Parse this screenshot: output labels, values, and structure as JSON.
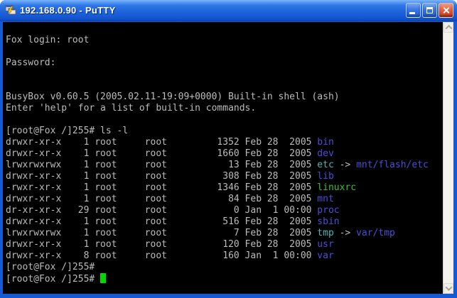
{
  "window": {
    "title": "192.168.0.90 - PuTTY",
    "icon": "putty-icon",
    "controls": {
      "minimize": "minimize-button",
      "maximize": "maximize-button",
      "close": "close-button"
    }
  },
  "palette": {
    "title_bar_blue": "#1f63dc",
    "border_blue": "#155ad4",
    "terminal_bg": "#000000",
    "terminal_fg": "#bcbcbc",
    "dir_blue": "#4d4dd8",
    "symlink_cyan": "#4fb6b6",
    "exec_green": "#3cbe3c",
    "cursor_green": "#00d800",
    "close_red": "#d44a26"
  },
  "scrollbar": {
    "up_icon": "chevron-up-icon",
    "down_icon": "chevron-down-icon"
  },
  "terminal": {
    "lines": [
      {
        "segments": [
          {
            "t": "",
            "c": "fg"
          }
        ]
      },
      {
        "segments": [
          {
            "t": "Fox login: root",
            "c": "fg"
          }
        ]
      },
      {
        "segments": [
          {
            "t": "",
            "c": "fg"
          }
        ]
      },
      {
        "segments": [
          {
            "t": "Password:",
            "c": "fg"
          }
        ]
      },
      {
        "segments": [
          {
            "t": "",
            "c": "fg"
          }
        ]
      },
      {
        "segments": [
          {
            "t": "",
            "c": "fg"
          }
        ]
      },
      {
        "segments": [
          {
            "t": "BusyBox v0.60.5 (2005.02.11-19:09+0000) Built-in shell (ash)",
            "c": "fg"
          }
        ]
      },
      {
        "segments": [
          {
            "t": "Enter 'help' for a list of built-in commands.",
            "c": "fg"
          }
        ]
      },
      {
        "segments": [
          {
            "t": "",
            "c": "fg"
          }
        ]
      },
      {
        "segments": [
          {
            "t": "[root@Fox /]255# ls -l",
            "c": "fg"
          }
        ]
      },
      {
        "segments": [
          {
            "t": "drwxr-xr-x    1 root     root         1352 Feb 28  2005 ",
            "c": "fg"
          },
          {
            "t": "bin",
            "c": "blue"
          }
        ]
      },
      {
        "segments": [
          {
            "t": "drwxr-xr-x    1 root     root         1660 Feb 28  2005 ",
            "c": "fg"
          },
          {
            "t": "dev",
            "c": "blue"
          }
        ]
      },
      {
        "segments": [
          {
            "t": "lrwxrwxrwx    1 root     root           13 Feb 28  2005 ",
            "c": "fg"
          },
          {
            "t": "etc",
            "c": "cyan"
          },
          {
            "t": " -> ",
            "c": "fg"
          },
          {
            "t": "mnt/flash/etc",
            "c": "blue"
          }
        ]
      },
      {
        "segments": [
          {
            "t": "drwxr-xr-x    1 root     root          308 Feb 28  2005 ",
            "c": "fg"
          },
          {
            "t": "lib",
            "c": "blue"
          }
        ]
      },
      {
        "segments": [
          {
            "t": "-rwxr-xr-x    1 root     root         1346 Feb 28  2005 ",
            "c": "fg"
          },
          {
            "t": "linuxrc",
            "c": "green"
          }
        ]
      },
      {
        "segments": [
          {
            "t": "drwxr-xr-x    1 root     root           84 Feb 28  2005 ",
            "c": "fg"
          },
          {
            "t": "mnt",
            "c": "blue"
          }
        ]
      },
      {
        "segments": [
          {
            "t": "dr-xr-xr-x   29 root     root            0 Jan  1 00:00 ",
            "c": "fg"
          },
          {
            "t": "proc",
            "c": "blue"
          }
        ]
      },
      {
        "segments": [
          {
            "t": "drwxr-xr-x    1 root     root          516 Feb 28  2005 ",
            "c": "fg"
          },
          {
            "t": "sbin",
            "c": "blue"
          }
        ]
      },
      {
        "segments": [
          {
            "t": "lrwxrwxrwx    1 root     root            7 Feb 28  2005 ",
            "c": "fg"
          },
          {
            "t": "tmp",
            "c": "cyan"
          },
          {
            "t": " -> ",
            "c": "fg"
          },
          {
            "t": "var/tmp",
            "c": "blue"
          }
        ]
      },
      {
        "segments": [
          {
            "t": "drwxr-xr-x    1 root     root          120 Feb 28  2005 ",
            "c": "fg"
          },
          {
            "t": "usr",
            "c": "blue"
          }
        ]
      },
      {
        "segments": [
          {
            "t": "drwxr-xr-x    8 root     root          160 Jan  1 00:00 ",
            "c": "fg"
          },
          {
            "t": "var",
            "c": "blue"
          }
        ]
      },
      {
        "segments": [
          {
            "t": "[root@Fox /]255#",
            "c": "fg"
          }
        ]
      },
      {
        "segments": [
          {
            "t": "[root@Fox /]255# ",
            "c": "fg"
          }
        ],
        "cursor": true
      }
    ]
  }
}
